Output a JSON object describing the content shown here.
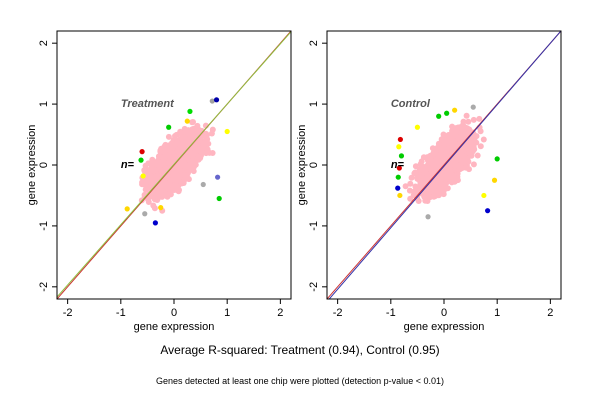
{
  "summary": "Average R-squared: Treatment (0.94), Control (0.95)",
  "footnote": "Genes detected at least one chip were plotted (detection p-value < 0.01)",
  "chart_data": [
    {
      "type": "scatter",
      "title": "Treatment",
      "annotation": "n=",
      "xlabel": "gene expression",
      "ylabel": "gene expression",
      "xlim": [
        -2.2,
        2.2
      ],
      "ylim": [
        -2.2,
        2.2
      ],
      "xticks": [
        -2,
        -1,
        0,
        1,
        2
      ],
      "yticks": [
        -2,
        -1,
        0,
        1,
        2
      ],
      "grid": false,
      "cloud": {
        "x_range": [
          -1.1,
          1.2
        ],
        "y_range": [
          -1.15,
          1.2
        ],
        "color": "#ffb6c1"
      },
      "fit_lines": [
        {
          "color": "#cc3333",
          "slope": 1.0,
          "intercept": 0.0
        },
        {
          "color": "#8fbf3f",
          "slope": 0.99,
          "intercept": 0.01
        }
      ],
      "points": [
        {
          "x": -0.6,
          "y": 0.22,
          "color": "#dd0000"
        },
        {
          "x": -0.62,
          "y": 0.08,
          "color": "#00cc00"
        },
        {
          "x": -0.58,
          "y": -0.18,
          "color": "#ffff00"
        },
        {
          "x": -0.88,
          "y": -0.72,
          "color": "#ffd700"
        },
        {
          "x": -0.35,
          "y": -0.95,
          "color": "#0000cc"
        },
        {
          "x": -0.55,
          "y": -0.8,
          "color": "#aaaaaa"
        },
        {
          "x": 0.72,
          "y": 1.05,
          "color": "#a0a0a0"
        },
        {
          "x": 0.8,
          "y": 1.07,
          "color": "#0000aa"
        },
        {
          "x": 0.25,
          "y": 0.72,
          "color": "#ffd700"
        },
        {
          "x": -0.1,
          "y": 0.62,
          "color": "#00cc00"
        },
        {
          "x": 0.55,
          "y": -0.32,
          "color": "#aaaaaa"
        },
        {
          "x": 0.82,
          "y": -0.2,
          "color": "#6666cc"
        },
        {
          "x": 0.85,
          "y": -0.55,
          "color": "#00cc00"
        },
        {
          "x": 1.0,
          "y": 0.55,
          "color": "#ffff00"
        },
        {
          "x": 0.3,
          "y": 0.88,
          "color": "#00dd00"
        },
        {
          "x": -0.25,
          "y": -0.7,
          "color": "#ffd700"
        }
      ]
    },
    {
      "type": "scatter",
      "title": "Control",
      "annotation": "n=",
      "xlabel": "gene expression",
      "ylabel": "gene expression",
      "xlim": [
        -2.2,
        2.2
      ],
      "ylim": [
        -2.2,
        2.2
      ],
      "xticks": [
        -2,
        -1,
        0,
        1,
        2
      ],
      "yticks": [
        -2,
        -1,
        0,
        1,
        2
      ],
      "grid": false,
      "cloud": {
        "x_range": [
          -1.1,
          1.2
        ],
        "y_range": [
          -1.15,
          1.2
        ],
        "color": "#ffb6c1"
      },
      "fit_lines": [
        {
          "color": "#cc3333",
          "slope": 1.0,
          "intercept": 0.0
        },
        {
          "color": "#3333aa",
          "slope": 1.01,
          "intercept": -0.02
        }
      ],
      "points": [
        {
          "x": -0.82,
          "y": 0.42,
          "color": "#dd0000"
        },
        {
          "x": -0.85,
          "y": 0.3,
          "color": "#ffff00"
        },
        {
          "x": -0.8,
          "y": 0.15,
          "color": "#00cc00"
        },
        {
          "x": -0.84,
          "y": -0.05,
          "color": "#dd0000"
        },
        {
          "x": -0.86,
          "y": -0.2,
          "color": "#00cc00"
        },
        {
          "x": -0.87,
          "y": -0.38,
          "color": "#0000cc"
        },
        {
          "x": -0.83,
          "y": -0.5,
          "color": "#ffd700"
        },
        {
          "x": -0.3,
          "y": -0.85,
          "color": "#aaaaaa"
        },
        {
          "x": 0.05,
          "y": 0.85,
          "color": "#00cc00"
        },
        {
          "x": 0.2,
          "y": 0.9,
          "color": "#ffd700"
        },
        {
          "x": 0.55,
          "y": 0.95,
          "color": "#aaaaaa"
        },
        {
          "x": 0.82,
          "y": -0.75,
          "color": "#0000cc"
        },
        {
          "x": 0.75,
          "y": -0.5,
          "color": "#ffff00"
        },
        {
          "x": 0.95,
          "y": -0.25,
          "color": "#ffd700"
        },
        {
          "x": 1.0,
          "y": 0.1,
          "color": "#00cc00"
        },
        {
          "x": -0.5,
          "y": 0.62,
          "color": "#ffff00"
        },
        {
          "x": -0.1,
          "y": 0.8,
          "color": "#00cc00"
        }
      ]
    }
  ]
}
